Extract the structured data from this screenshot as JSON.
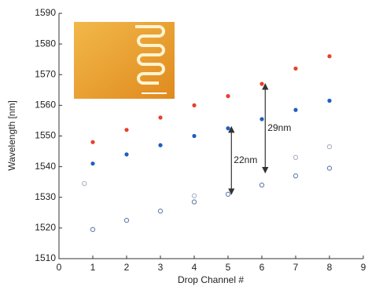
{
  "chart_data": {
    "type": "scatter",
    "x_label": "Drop Channel #",
    "y_label": "Wavelength [nm]",
    "xlim": [
      0,
      9
    ],
    "xticks": [
      0,
      1,
      2,
      3,
      4,
      5,
      6,
      7,
      8,
      9
    ],
    "ylim": [
      1510,
      1590
    ],
    "yticks": [
      1510,
      1520,
      1530,
      1540,
      1550,
      1560,
      1570,
      1580,
      1590
    ],
    "series": [
      {
        "color": "#e8402a",
        "marker": "filled",
        "x": [
          1,
          2,
          3,
          4,
          5,
          6,
          7,
          8
        ],
        "values": [
          1548,
          1552,
          1556,
          1560,
          1563,
          1567,
          1572,
          1576
        ]
      },
      {
        "color": "#1f5fbf",
        "marker": "filled",
        "x": [
          1,
          2,
          3,
          4,
          5,
          6,
          7,
          8
        ],
        "values": [
          1541,
          1544,
          1547,
          1550,
          1552.5,
          1555.5,
          1558.5,
          1561.5
        ]
      },
      {
        "color": "#6f85b0",
        "marker": "open",
        "x": [
          1,
          2,
          3,
          4,
          5,
          6,
          7,
          8
        ],
        "values": [
          1519.5,
          1522.5,
          1525.5,
          1528.5,
          1531,
          1534,
          1537,
          1539.5
        ]
      },
      {
        "color": "#b0b6c4",
        "marker": "open",
        "x": [
          0.75,
          4,
          7,
          8
        ],
        "values": [
          1534.5,
          1530.5,
          1543,
          1546.5
        ]
      }
    ],
    "annotations": [
      {
        "text": "22nm",
        "x": 5.1,
        "y_from": 1553,
        "y_to": 1531
      },
      {
        "text": "29nm",
        "x": 6.1,
        "y_from": 1567,
        "y_to": 1538
      }
    ]
  }
}
